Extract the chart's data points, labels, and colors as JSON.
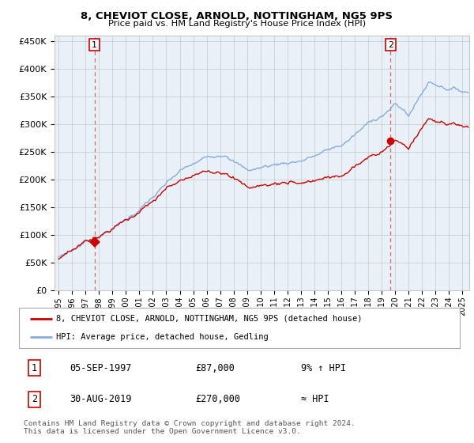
{
  "title_line1": "8, CHEVIOT CLOSE, ARNOLD, NOTTINGHAM, NG5 9PS",
  "title_line2": "Price paid vs. HM Land Registry's House Price Index (HPI)",
  "ylabel_ticks": [
    "£0",
    "£50K",
    "£100K",
    "£150K",
    "£200K",
    "£250K",
    "£300K",
    "£350K",
    "£400K",
    "£450K"
  ],
  "ylabel_values": [
    0,
    50000,
    100000,
    150000,
    200000,
    250000,
    300000,
    350000,
    400000,
    450000
  ],
  "ylim": [
    0,
    460000
  ],
  "xlim_start": 1994.7,
  "xlim_end": 2025.5,
  "sale1_date": 1997.67,
  "sale1_price": 87000,
  "sale1_label": "1",
  "sale2_date": 2019.66,
  "sale2_price": 270000,
  "sale2_label": "2",
  "line1_color": "#cc0000",
  "line2_color": "#88aadd",
  "line1_label": "8, CHEVIOT CLOSE, ARNOLD, NOTTINGHAM, NG5 9PS (detached house)",
  "line2_label": "HPI: Average price, detached house, Gedling",
  "table_row1": [
    "1",
    "05-SEP-1997",
    "£87,000",
    "9% ↑ HPI"
  ],
  "table_row2": [
    "2",
    "30-AUG-2019",
    "£270,000",
    "≈ HPI"
  ],
  "footer": "Contains HM Land Registry data © Crown copyright and database right 2024.\nThis data is licensed under the Open Government Licence v3.0.",
  "bg_color": "#ffffff",
  "chart_bg_color": "#e8f0f8",
  "grid_color": "#c8c8c8",
  "marker_color": "#cc0000",
  "vline_color": "#dd6666",
  "number_box_color": "#cc0000"
}
